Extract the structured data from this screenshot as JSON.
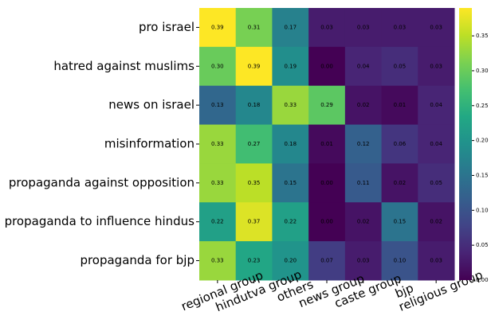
{
  "chart_data": {
    "type": "heatmap",
    "x_categories": [
      "regional group",
      "hindutva group",
      "others",
      "news group",
      "caste group",
      "bjp",
      "religious group"
    ],
    "y_categories": [
      "pro israel",
      "hatred against muslims",
      "news on israel",
      "misinformation",
      "propaganda against opposition",
      "propaganda to influence hindus",
      "propaganda for bjp"
    ],
    "values": [
      [
        0.39,
        0.31,
        0.17,
        0.03,
        0.03,
        0.03,
        0.03
      ],
      [
        0.3,
        0.39,
        0.19,
        0,
        0.04,
        0.05,
        0.03
      ],
      [
        0.13,
        0.18,
        0.33,
        0.29,
        0.02,
        0.01,
        0.04
      ],
      [
        0.33,
        0.27,
        0.18,
        0.01,
        0.12,
        0.06,
        0.04
      ],
      [
        0.33,
        0.35,
        0.15,
        0,
        0.11,
        0.02,
        0.05
      ],
      [
        0.22,
        0.37,
        0.22,
        0,
        0.02,
        0.15,
        0.02
      ],
      [
        0.33,
        0.23,
        0.2,
        0.07,
        0.03,
        0.1,
        0.03
      ]
    ],
    "value_labels": [
      [
        "0.39",
        "0.31",
        "0.17",
        "0.03",
        "0.03",
        "0.03",
        "0.03"
      ],
      [
        "0.30",
        "0.39",
        "0.19",
        "0.00",
        "0.04",
        "0.05",
        "0.03"
      ],
      [
        "0.13",
        "0.18",
        "0.33",
        "0.29",
        "0.02",
        "0.01",
        "0.04"
      ],
      [
        "0.33",
        "0.27",
        "0.18",
        "0.01",
        "0.12",
        "0.06",
        "0.04"
      ],
      [
        "0.33",
        "0.35",
        "0.15",
        "0.00",
        "0.11",
        "0.02",
        "0.05"
      ],
      [
        "0.22",
        "0.37",
        "0.22",
        "0.00",
        "0.02",
        "0.15",
        "0.02"
      ],
      [
        "0.33",
        "0.23",
        "0.20",
        "0.07",
        "0.03",
        "0.10",
        "0.03"
      ]
    ],
    "colormap": "viridis",
    "clim": [
      0,
      0.39
    ],
    "cticks": [
      {
        "value": 0,
        "label": "0.00"
      },
      0.05,
      {
        "value": 0.1,
        "label": "0.10"
      },
      0.15,
      {
        "value": 0.2,
        "label": "0.20"
      },
      0.25,
      {
        "value": 0.3,
        "label": "0.30"
      },
      0.35
    ]
  }
}
